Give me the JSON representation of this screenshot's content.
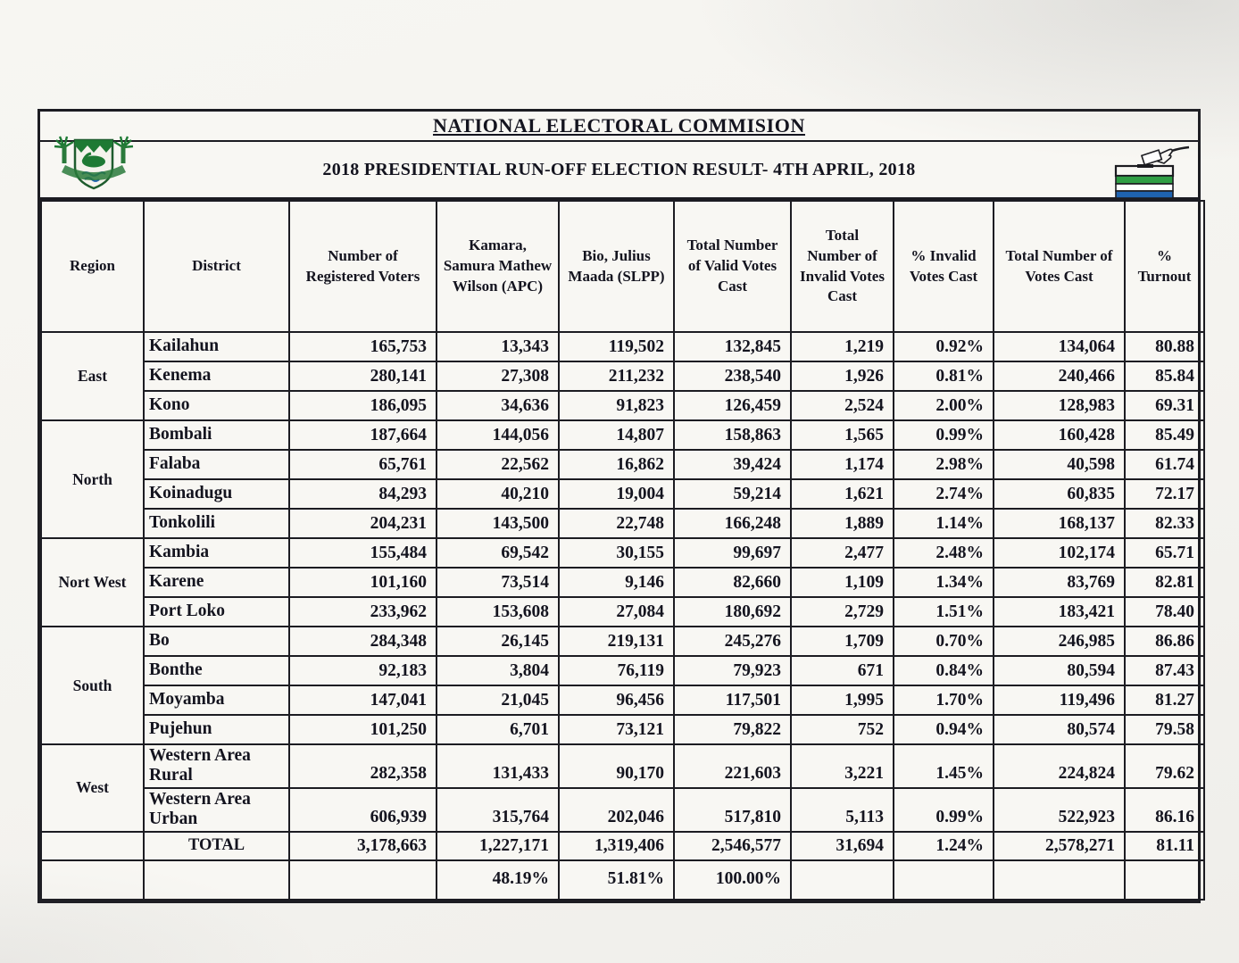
{
  "page": {
    "org_title": "NATIONAL ELECTORAL COMMISION",
    "subtitle": "2018 PRESIDENTIAL RUN-OFF ELECTION RESULT- 4TH APRIL, 2018"
  },
  "icons": {
    "left": "sierra-leone-coat-of-arms",
    "right": "ballot-box-with-hand"
  },
  "colors": {
    "paper": "#f8f7f3",
    "ink": "#14141f",
    "border": "#1c1c22",
    "green": "#2b8a3e",
    "blue": "#1f63b0"
  },
  "table": {
    "headers": [
      "Region",
      "District",
      "Number of Registered Voters",
      "Kamara, Samura Mathew Wilson (APC)",
      "Bio, Julius Maada (SLPP)",
      "Total Number of Valid Votes Cast",
      "Total Number of Invalid Votes Cast",
      "%  Invalid Votes Cast",
      "Total Number of Votes Cast",
      "% Turnout"
    ],
    "regions": [
      {
        "name": "East",
        "rows": [
          {
            "district": "Kailahun",
            "values": [
              "165,753",
              "13,343",
              "119,502",
              "132,845",
              "1,219",
              "0.92%",
              "134,064",
              "80.88"
            ]
          },
          {
            "district": "Kenema",
            "values": [
              "280,141",
              "27,308",
              "211,232",
              "238,540",
              "1,926",
              "0.81%",
              "240,466",
              "85.84"
            ]
          },
          {
            "district": "Kono",
            "values": [
              "186,095",
              "34,636",
              "91,823",
              "126,459",
              "2,524",
              "2.00%",
              "128,983",
              "69.31"
            ]
          }
        ]
      },
      {
        "name": "North",
        "rows": [
          {
            "district": "Bombali",
            "values": [
              "187,664",
              "144,056",
              "14,807",
              "158,863",
              "1,565",
              "0.99%",
              "160,428",
              "85.49"
            ]
          },
          {
            "district": "Falaba",
            "values": [
              "65,761",
              "22,562",
              "16,862",
              "39,424",
              "1,174",
              "2.98%",
              "40,598",
              "61.74"
            ]
          },
          {
            "district": "Koinadugu",
            "values": [
              "84,293",
              "40,210",
              "19,004",
              "59,214",
              "1,621",
              "2.74%",
              "60,835",
              "72.17"
            ]
          },
          {
            "district": "Tonkolili",
            "values": [
              "204,231",
              "143,500",
              "22,748",
              "166,248",
              "1,889",
              "1.14%",
              "168,137",
              "82.33"
            ]
          }
        ]
      },
      {
        "name": "Nort West",
        "rows": [
          {
            "district": "Kambia",
            "values": [
              "155,484",
              "69,542",
              "30,155",
              "99,697",
              "2,477",
              "2.48%",
              "102,174",
              "65.71"
            ]
          },
          {
            "district": "Karene",
            "values": [
              "101,160",
              "73,514",
              "9,146",
              "82,660",
              "1,109",
              "1.34%",
              "83,769",
              "82.81"
            ]
          },
          {
            "district": "Port Loko",
            "values": [
              "233,962",
              "153,608",
              "27,084",
              "180,692",
              "2,729",
              "1.51%",
              "183,421",
              "78.40"
            ]
          }
        ]
      },
      {
        "name": "South",
        "rows": [
          {
            "district": "Bo",
            "values": [
              "284,348",
              "26,145",
              "219,131",
              "245,276",
              "1,709",
              "0.70%",
              "246,985",
              "86.86"
            ]
          },
          {
            "district": "Bonthe",
            "values": [
              "92,183",
              "3,804",
              "76,119",
              "79,923",
              "671",
              "0.84%",
              "80,594",
              "87.43"
            ]
          },
          {
            "district": "Moyamba",
            "values": [
              "147,041",
              "21,045",
              "96,456",
              "117,501",
              "1,995",
              "1.70%",
              "119,496",
              "81.27"
            ]
          },
          {
            "district": "Pujehun",
            "values": [
              "101,250",
              "6,701",
              "73,121",
              "79,822",
              "752",
              "0.94%",
              "80,574",
              "79.58"
            ]
          }
        ]
      },
      {
        "name": "West",
        "rows": [
          {
            "district": "Western Area Rural",
            "values": [
              "282,358",
              "131,433",
              "90,170",
              "221,603",
              "3,221",
              "1.45%",
              "224,824",
              "79.62"
            ]
          },
          {
            "district": "Western Area Urban",
            "values": [
              "606,939",
              "315,764",
              "202,046",
              "517,810",
              "5,113",
              "0.99%",
              "522,923",
              "86.16"
            ]
          }
        ]
      }
    ],
    "total_row": {
      "label": "TOTAL",
      "values": [
        "3,178,663",
        "1,227,171",
        "1,319,406",
        "2,546,577",
        "31,694",
        "1.24%",
        "2,578,271",
        "81.11"
      ]
    },
    "percent_row": {
      "values": [
        "",
        "48.19%",
        "51.81%",
        "100.00%",
        "",
        "",
        "",
        ""
      ]
    }
  }
}
